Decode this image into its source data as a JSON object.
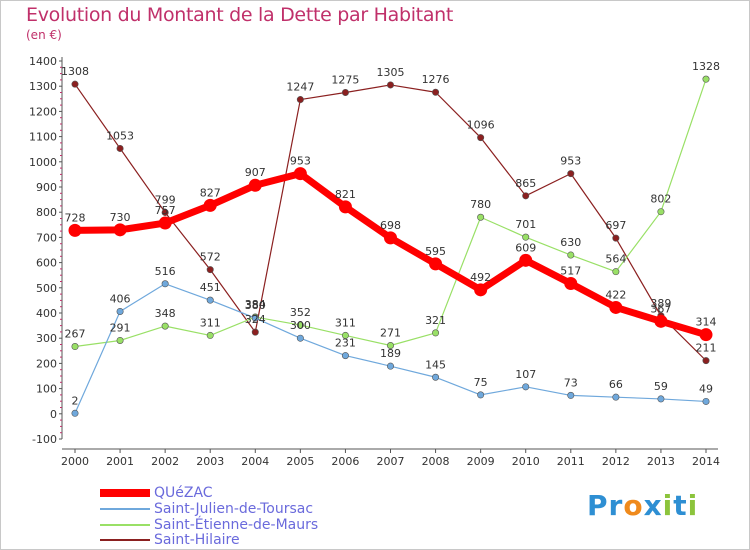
{
  "header": {
    "title": "Evolution du Montant de la Dette par Habitant",
    "subtitle": "(en €)"
  },
  "logo": {
    "text": "Proxiti",
    "letters": [
      "P",
      "r",
      "o",
      "x",
      "i",
      "t",
      "i"
    ],
    "colors": [
      "#2e8fd3",
      "#2e8fd3",
      "#ef8a1c",
      "#2e8fd3",
      "#8cc43c",
      "#2e8fd3",
      "#8cc43c"
    ]
  },
  "chart_data": {
    "type": "line",
    "title": "Evolution du Montant de la Dette par Habitant",
    "ylabel": "(en €)",
    "xlabel": "",
    "x": [
      "2000",
      "2001",
      "2002",
      "2003",
      "2004",
      "2005",
      "2006",
      "2007",
      "2008",
      "2009",
      "2010",
      "2011",
      "2012",
      "2013",
      "2014"
    ],
    "ylim": [
      -100,
      1400
    ],
    "yticks": [
      "-100",
      "0",
      "100",
      "200",
      "300",
      "400",
      "500",
      "600",
      "700",
      "800",
      "900",
      "1000",
      "1100",
      "1200",
      "1300",
      "1400"
    ],
    "grid": false,
    "legend_position": "bottom-left",
    "series": [
      {
        "name": "QUéZAC",
        "color": "#ff0000",
        "values": [
          728,
          730,
          757,
          827,
          907,
          953,
          821,
          698,
          595,
          492,
          609,
          517,
          422,
          367,
          314
        ]
      },
      {
        "name": "Saint-Julien-de-Toursac",
        "color": "#6fa8dc",
        "values": [
          2,
          406,
          516,
          451,
          380,
          300,
          231,
          189,
          145,
          75,
          107,
          73,
          66,
          59,
          49
        ]
      },
      {
        "name": "Saint-Étienne-de-Maurs",
        "color": "#99e066",
        "values": [
          267,
          291,
          348,
          311,
          384,
          352,
          311,
          271,
          321,
          780,
          701,
          630,
          564,
          802,
          1328
        ]
      },
      {
        "name": "Saint-Hilaire",
        "color": "#8b2020",
        "values": [
          1308,
          1053,
          799,
          572,
          324,
          1247,
          1275,
          1305,
          1276,
          1096,
          865,
          953,
          697,
          389,
          211
        ]
      }
    ]
  }
}
